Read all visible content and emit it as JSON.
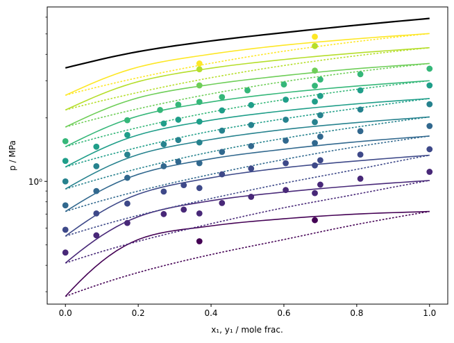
{
  "chart_data": {
    "type": "line",
    "title": "",
    "xlabel": "x₁, y₁ / mole frac.",
    "ylabel": "p / MPa",
    "x_scale": "linear",
    "y_scale": "log",
    "xlim": [
      -0.05,
      1.05
    ],
    "ylim": [
      0.262,
      6.71
    ],
    "grid": false,
    "x_ticks": [
      {
        "value": 0.0,
        "label": "0.0"
      },
      {
        "value": 0.2,
        "label": "0.2"
      },
      {
        "value": 0.4,
        "label": "0.4"
      },
      {
        "value": 0.6,
        "label": "0.6"
      },
      {
        "value": 0.8,
        "label": "0.8"
      },
      {
        "value": 1.0,
        "label": "1.0"
      }
    ],
    "y_major_ticks": [
      {
        "value": 1.0,
        "label": "10⁰"
      }
    ],
    "y_minor_ticks": [
      0.3,
      0.4,
      0.5,
      0.6,
      0.7,
      0.8,
      0.9,
      2,
      3,
      4,
      5,
      6
    ],
    "reference_line": {
      "color": "#000000",
      "x": [
        0.0,
        0.2,
        0.4,
        0.6,
        0.8,
        1.0
      ],
      "y": [
        3.45,
        4.12,
        4.63,
        5.07,
        5.5,
        5.92
      ]
    },
    "series": [
      {
        "color": "#440154",
        "bubble": [
          0.285,
          0.53,
          0.615,
          0.665,
          0.7,
          0.72
        ],
        "dew": [
          0.285,
          0.37,
          0.45,
          0.53,
          0.625,
          0.72
        ],
        "points_x": [
          0.368,
          0.685
        ],
        "points_y": [
          0.52,
          0.655
        ]
      },
      {
        "color": "#482878",
        "bubble": [
          0.41,
          0.68,
          0.81,
          0.89,
          0.955,
          1.01
        ],
        "dew": [
          0.41,
          0.52,
          0.63,
          0.75,
          0.87,
          1.01
        ],
        "points_x": [
          0.0,
          0.085,
          0.17,
          0.27,
          0.325,
          0.368,
          0.43,
          0.51,
          0.605,
          0.685,
          0.7,
          0.81,
          1.0
        ],
        "points_y": [
          0.46,
          0.555,
          0.635,
          0.7,
          0.735,
          0.705,
          0.79,
          0.845,
          0.91,
          0.88,
          0.965,
          1.03,
          1.11
        ]
      },
      {
        "color": "#3e4989",
        "bubble": [
          0.55,
          0.87,
          1.04,
          1.16,
          1.25,
          1.33
        ],
        "dew": [
          0.55,
          0.69,
          0.83,
          0.98,
          1.14,
          1.33
        ],
        "points_x": [
          0.0,
          0.085,
          0.17,
          0.27,
          0.325,
          0.368,
          0.43,
          0.51,
          0.605,
          0.685,
          0.7,
          0.81,
          1.0
        ],
        "points_y": [
          0.59,
          0.705,
          0.785,
          0.895,
          0.96,
          0.93,
          1.08,
          1.15,
          1.22,
          1.19,
          1.26,
          1.34,
          1.42
        ]
      },
      {
        "color": "#31688e",
        "bubble": [
          0.72,
          1.08,
          1.28,
          1.42,
          1.54,
          1.64
        ],
        "dew": [
          0.72,
          0.9,
          1.08,
          1.27,
          1.46,
          1.64
        ],
        "points_x": [
          0.0,
          0.085,
          0.17,
          0.27,
          0.31,
          0.368,
          0.43,
          0.51,
          0.605,
          0.685,
          0.7,
          0.81,
          1.0
        ],
        "points_y": [
          0.77,
          0.9,
          1.04,
          1.18,
          1.24,
          1.22,
          1.38,
          1.47,
          1.56,
          1.52,
          1.63,
          1.73,
          1.83
        ]
      },
      {
        "color": "#26828e",
        "bubble": [
          0.92,
          1.34,
          1.58,
          1.76,
          1.9,
          2.02
        ],
        "dew": [
          0.92,
          1.15,
          1.38,
          1.6,
          1.81,
          2.02
        ],
        "points_x": [
          0.0,
          0.085,
          0.17,
          0.27,
          0.31,
          0.368,
          0.43,
          0.51,
          0.605,
          0.685,
          0.7,
          0.81,
          1.0
        ],
        "points_y": [
          1.0,
          1.18,
          1.34,
          1.5,
          1.57,
          1.53,
          1.74,
          1.85,
          1.96,
          1.91,
          2.06,
          2.19,
          2.32
        ]
      },
      {
        "color": "#1f9e89",
        "bubble": [
          1.17,
          1.66,
          1.95,
          2.16,
          2.33,
          2.47
        ],
        "dew": [
          1.17,
          1.45,
          1.73,
          1.98,
          2.22,
          2.47
        ],
        "points_x": [
          0.0,
          0.085,
          0.17,
          0.27,
          0.31,
          0.368,
          0.43,
          0.51,
          0.605,
          0.685,
          0.7,
          0.81,
          1.0
        ],
        "points_y": [
          1.25,
          1.46,
          1.66,
          1.88,
          1.96,
          1.92,
          2.17,
          2.3,
          2.44,
          2.39,
          2.54,
          2.7,
          2.85
        ]
      },
      {
        "color": "#35b779",
        "bubble": [
          1.46,
          2.04,
          2.38,
          2.63,
          2.83,
          3.0
        ],
        "dew": [
          1.46,
          1.8,
          2.13,
          2.44,
          2.73,
          3.0
        ],
        "points_x": [
          0.0,
          0.17,
          0.26,
          0.31,
          0.368,
          0.43,
          0.5,
          0.6,
          0.685,
          0.7,
          0.81,
          1.0
        ],
        "points_y": [
          1.55,
          1.95,
          2.18,
          2.31,
          2.38,
          2.51,
          2.7,
          2.88,
          2.84,
          3.04,
          3.22,
          3.42
        ]
      },
      {
        "color": "#6ece58",
        "bubble": [
          1.81,
          2.49,
          2.88,
          3.17,
          3.42,
          3.62
        ],
        "dew": [
          1.81,
          2.21,
          2.6,
          2.97,
          3.31,
          3.62
        ],
        "points_x": [
          0.368,
          0.685
        ],
        "points_y": [
          2.85,
          3.35
        ]
      },
      {
        "color": "#b5de2b",
        "bubble": [
          2.18,
          2.97,
          3.44,
          3.78,
          4.06,
          4.3
        ],
        "dew": [
          2.18,
          2.64,
          3.1,
          3.54,
          3.94,
          4.3
        ],
        "points_x": [
          0.368,
          0.685
        ],
        "points_y": [
          3.4,
          4.38
        ]
      },
      {
        "color": "#fde725",
        "bubble": [
          2.56,
          3.48,
          4.01,
          4.42,
          4.74,
          5.02
        ],
        "dew": [
          2.56,
          3.1,
          3.63,
          4.14,
          4.6,
          5.02
        ],
        "points_x": [
          0.368,
          0.685
        ],
        "points_y": [
          3.62,
          4.85
        ]
      }
    ]
  }
}
